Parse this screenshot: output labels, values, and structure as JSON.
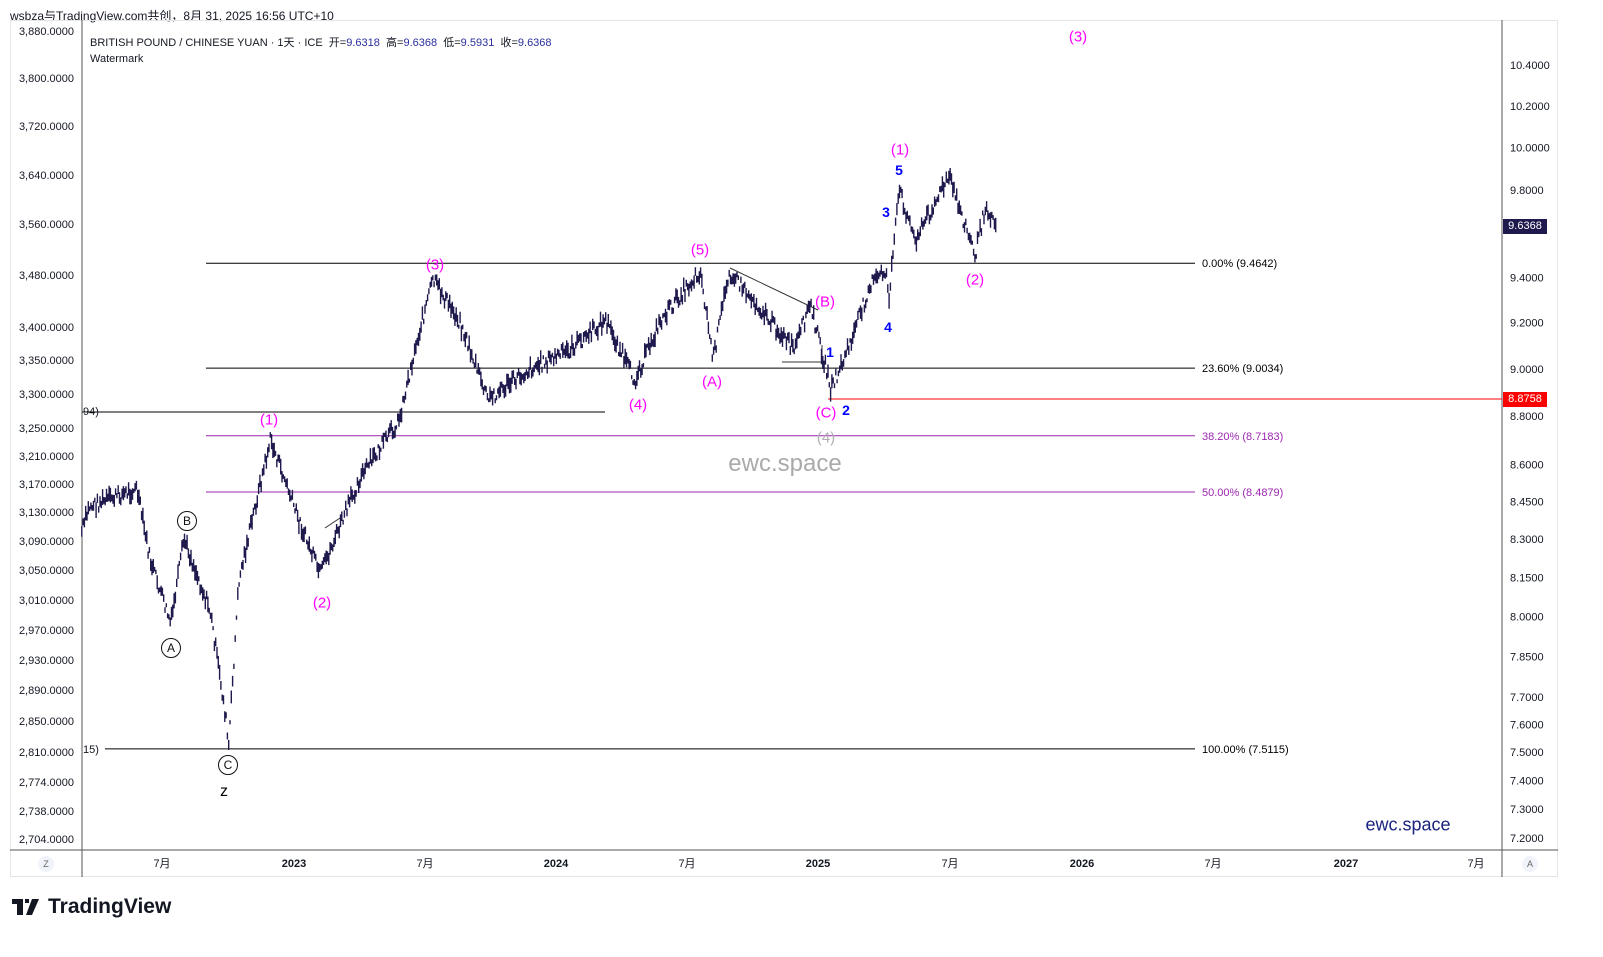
{
  "header": {
    "attribution": "wsbza与TradingView.com共创，8月 31, 2025 16:56 UTC+10"
  },
  "legend": {
    "symbol": "BRITISH POUND / CHINESE YUAN · 1天 · ICE",
    "open_label": "开=",
    "open": "9.6318",
    "high_label": "高=",
    "high": "9.6368",
    "low_label": "低=",
    "low": "9.5931",
    "close_label": "收=",
    "close": "9.6368",
    "watermark_label": "Watermark"
  },
  "colors": {
    "candles": "#1f1a4d",
    "wave_major": "#ff00ff",
    "wave_minor": "#0000ff",
    "fib_purple": "#9c27b0",
    "last_price": "#1f1a4d",
    "red_line": "#ff0000"
  },
  "chart_data": {
    "type": "line",
    "title": "BRITISH POUND / CHINESE YUAN · 1D · ICE",
    "scale": "log",
    "ylim": [
      7.15,
      10.6
    ],
    "x": [
      2022.19,
      2022.22,
      2022.4,
      2022.45,
      2022.53,
      2022.58,
      2022.68,
      2022.74,
      2022.75,
      2022.79,
      2022.91,
      2023.02,
      2023.1,
      2023.25,
      2023.4,
      2023.48,
      2023.53,
      2023.63,
      2023.74,
      2023.9,
      2024.05,
      2024.19,
      2024.3,
      2024.4,
      2024.55,
      2024.6,
      2024.66,
      2024.78,
      2024.91,
      2024.97,
      2025.05,
      2025.12,
      2025.2,
      2025.26,
      2025.27,
      2025.31,
      2025.37,
      2025.5,
      2025.6,
      2025.64,
      2025.68
    ],
    "y": [
      8.33,
      8.43,
      8.5,
      8.22,
      7.97,
      8.3,
      8.02,
      7.62,
      7.51,
      8.14,
      8.7,
      8.37,
      8.16,
      8.54,
      8.78,
      9.17,
      9.39,
      9.21,
      8.87,
      9.0,
      9.08,
      9.21,
      8.95,
      9.21,
      9.43,
      9.04,
      9.43,
      9.26,
      9.08,
      9.28,
      8.91,
      9.1,
      9.37,
      9.43,
      9.3,
      9.8,
      9.57,
      9.86,
      9.5,
      9.73,
      9.64
    ],
    "right_axis_ticks": [
      "10.4000",
      "10.2000",
      "10.0000",
      "9.8000",
      "9.4000",
      "9.2000",
      "9.0000",
      "8.8000",
      "8.6000",
      "8.4500",
      "8.3000",
      "8.1500",
      "8.0000",
      "7.8500",
      "7.7000",
      "7.6000",
      "7.5000",
      "7.4000",
      "7.3000",
      "7.2000"
    ],
    "left_axis_ticks": [
      "3,880.0000",
      "3,800.0000",
      "3,720.0000",
      "3,640.0000",
      "3,560.0000",
      "3,480.0000",
      "3,400.0000",
      "3,350.0000",
      "3,300.0000",
      "3,250.0000",
      "3,210.0000",
      "3,170.0000",
      "3,130.0000",
      "3,090.0000",
      "3,050.0000",
      "3,010.0000",
      "2,970.0000",
      "2,930.0000",
      "2,890.0000",
      "2,850.0000",
      "2,810.0000",
      "2,774.0000",
      "2,738.0000",
      "2,704.0000"
    ],
    "x_ticks": [
      "7月",
      "2023",
      "7月",
      "2024",
      "7月",
      "2025",
      "7月",
      "2026",
      "7月",
      "2027",
      "7月"
    ],
    "last_price": "9.6368",
    "red_level": "8.8758",
    "fib_levels": [
      {
        "label": "0.00% (9.4642)",
        "value": 9.4642
      },
      {
        "label": "23.60% (9.0034)",
        "value": 9.0034
      },
      {
        "label": "38.20% (8.7183)",
        "value": 8.7183
      },
      {
        "label": "50.00% (8.4879)",
        "value": 8.4879
      },
      {
        "label": "100.00% (7.5115)",
        "value": 7.5115
      }
    ],
    "left_cut_labels": [
      "94)",
      "15)"
    ],
    "annotations": {
      "w3_top": "(3)",
      "w1": "(1)",
      "w5_minor": "5",
      "w3_minor": "3",
      "w4_minor": "4",
      "w2": "(2)",
      "w5": "(5)",
      "wB": "(B)",
      "w1_minor": "1",
      "wC": "(C)",
      "w2_minor": "2",
      "w4_gray": "(4)",
      "wA": "(A)",
      "w4": "(4)",
      "w3": "(3)",
      "w1_early": "(1)",
      "w2_early": "(2)",
      "cB": "B",
      "cA": "A",
      "cC": "C",
      "z": "z"
    },
    "watermark": "ewc.space",
    "brand": "ewc.space"
  },
  "footer": {
    "corner_left": "Z",
    "corner_right": "A",
    "logo": "TradingView"
  }
}
